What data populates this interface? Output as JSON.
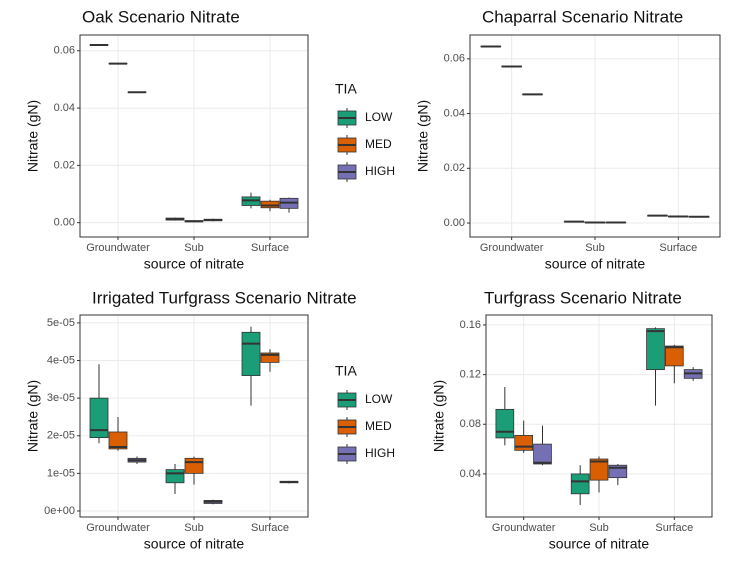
{
  "chart_data": [
    {
      "type": "box",
      "title": "Oak Scenario Nitrate",
      "x_label": "source of nitrate",
      "y_label": "Nitrate (gN)",
      "categories": [
        "Groundwater",
        "Sub",
        "Surface"
      ],
      "legend_title": "TIA",
      "legend": "right",
      "ylim": [
        -0.005,
        0.0655
      ],
      "yticks": [
        {
          "value": 0,
          "label": "0.00"
        },
        0.02,
        0.04,
        0.06
      ],
      "grid": true,
      "series": [
        {
          "name": "LOW",
          "color": "#1b9e77",
          "values": [
            {
              "min": 0.0618,
              "q1": 0.0619,
              "median": 0.062,
              "q3": 0.0621,
              "max": 0.0622
            },
            {
              "min": 0.0007,
              "q1": 0.0009,
              "median": 0.0012,
              "q3": 0.0016,
              "max": 0.0018
            },
            {
              "min": 0.005,
              "q1": 0.006,
              "median": 0.0078,
              "q3": 0.009,
              "max": 0.0105
            }
          ]
        },
        {
          "name": "MED",
          "color": "#d95f02",
          "values": [
            {
              "min": 0.0553,
              "q1": 0.0554,
              "median": 0.0555,
              "q3": 0.0556,
              "max": 0.0557
            },
            {
              "min": 0.0002,
              "q1": 0.0003,
              "median": 0.0005,
              "q3": 0.0007,
              "max": 0.0008
            },
            {
              "min": 0.004,
              "q1": 0.0052,
              "median": 0.006,
              "q3": 0.0075,
              "max": 0.008
            }
          ]
        },
        {
          "name": "HIGH",
          "color": "#7570b3",
          "values": [
            {
              "min": 0.0453,
              "q1": 0.0454,
              "median": 0.0455,
              "q3": 0.0456,
              "max": 0.0457
            },
            {
              "min": 0.0005,
              "q1": 0.0007,
              "median": 0.0009,
              "q3": 0.0012,
              "max": 0.0014
            },
            {
              "min": 0.0035,
              "q1": 0.005,
              "median": 0.007,
              "q3": 0.0085,
              "max": 0.0088
            }
          ]
        }
      ]
    },
    {
      "type": "box",
      "title": "Chaparral Scenario Nitrate",
      "x_label": "source of nitrate",
      "y_label": "Nitrate (gN)",
      "categories": [
        "Groundwater",
        "Sub",
        "Surface"
      ],
      "ylim": [
        -0.0051,
        0.0687
      ],
      "yticks": [
        {
          "value": 0,
          "label": "0.00"
        },
        0.02,
        0.04,
        0.06
      ],
      "grid": true,
      "series": [
        {
          "color": "#1b9e77",
          "values": [
            {
              "min": 0.0643,
              "q1": 0.0644,
              "median": 0.0645,
              "q3": 0.0646,
              "max": 0.0647
            },
            {
              "min": 0.0004,
              "q1": 0.00045,
              "median": 0.0005,
              "q3": 0.00055,
              "max": 0.0006
            },
            {
              "min": 0.0026,
              "q1": 0.00265,
              "median": 0.0027,
              "q3": 0.00275,
              "max": 0.0028
            }
          ]
        },
        {
          "color": "#d95f02",
          "values": [
            {
              "min": 0.057,
              "q1": 0.0571,
              "median": 0.0572,
              "q3": 0.0573,
              "max": 0.0574
            },
            {
              "min": 0.0001,
              "q1": 0.00015,
              "median": 0.0002,
              "q3": 0.00025,
              "max": 0.0003
            },
            {
              "min": 0.0023,
              "q1": 0.00235,
              "median": 0.0024,
              "q3": 0.00245,
              "max": 0.0025
            }
          ]
        },
        {
          "color": "#7570b3",
          "values": [
            {
              "min": 0.0468,
              "q1": 0.0469,
              "median": 0.047,
              "q3": 0.0471,
              "max": 0.0472
            },
            {
              "min": 0.0001,
              "q1": 0.00015,
              "median": 0.0002,
              "q3": 0.00025,
              "max": 0.0003
            },
            {
              "min": 0.0022,
              "q1": 0.00225,
              "median": 0.0023,
              "q3": 0.00235,
              "max": 0.0024
            }
          ]
        }
      ]
    },
    {
      "type": "box",
      "title": "Irrigated Turfgrass Scenario Nitrate",
      "x_label": "source of nitrate",
      "y_label": "Nitrate (gN)",
      "categories": [
        "Groundwater",
        "Sub",
        "Surface"
      ],
      "legend_title": "TIA",
      "legend": "right",
      "ylim": [
        -1.6e-06,
        5.21e-05
      ],
      "yticks": [
        {
          "value": 0,
          "label": "0e+00"
        },
        {
          "value": 1e-05,
          "label": "1e-05"
        },
        {
          "value": 2e-05,
          "label": "2e-05"
        },
        {
          "value": 3e-05,
          "label": "3e-05"
        },
        {
          "value": 4e-05,
          "label": "4e-05"
        },
        {
          "value": 5e-05,
          "label": "5e-05"
        }
      ],
      "grid": true,
      "series": [
        {
          "name": "LOW",
          "color": "#1b9e77",
          "values": [
            {
              "min": 1.8e-05,
              "q1": 1.95e-05,
              "median": 2.15e-05,
              "q3": 3e-05,
              "max": 3.9e-05
            },
            {
              "min": 4.5e-06,
              "q1": 7.5e-06,
              "median": 1e-05,
              "q3": 1.1e-05,
              "max": 1.25e-05
            },
            {
              "min": 2.8e-05,
              "q1": 3.6e-05,
              "median": 4.45e-05,
              "q3": 4.75e-05,
              "max": 4.9e-05
            }
          ]
        },
        {
          "name": "MED",
          "color": "#d95f02",
          "values": [
            {
              "min": 1.6e-05,
              "q1": 1.65e-05,
              "median": 1.7e-05,
              "q3": 2.1e-05,
              "max": 2.5e-05
            },
            {
              "min": 7e-06,
              "q1": 1e-05,
              "median": 1.3e-05,
              "q3": 1.4e-05,
              "max": 1.45e-05
            },
            {
              "min": 3.7e-05,
              "q1": 3.95e-05,
              "median": 4.15e-05,
              "q3": 4.2e-05,
              "max": 4.3e-05
            }
          ]
        },
        {
          "name": "HIGH",
          "color": "#7570b3",
          "values": [
            {
              "min": 1.25e-05,
              "q1": 1.3e-05,
              "median": 1.35e-05,
              "q3": 1.4e-05,
              "max": 1.45e-05
            },
            {
              "min": 1.8e-06,
              "q1": 2e-06,
              "median": 2.5e-06,
              "q3": 2.8e-06,
              "max": 3e-06
            },
            {
              "min": 7.3e-06,
              "q1": 7.5e-06,
              "median": 7.7e-06,
              "q3": 7.9e-06,
              "max": 8e-06
            }
          ]
        }
      ]
    },
    {
      "type": "box",
      "title": "Turfgrass Scenario Nitrate",
      "x_label": "source of nitrate",
      "y_label": "Nitrate (gN)",
      "categories": [
        "Groundwater",
        "Sub",
        "Surface"
      ],
      "ylim": [
        0.0053,
        0.168
      ],
      "yticks": [
        0.04,
        0.08,
        0.12,
        0.16
      ],
      "grid": true,
      "series": [
        {
          "color": "#1b9e77",
          "values": [
            {
              "min": 0.063,
              "q1": 0.069,
              "median": 0.074,
              "q3": 0.092,
              "max": 0.11
            },
            {
              "min": 0.015,
              "q1": 0.024,
              "median": 0.034,
              "q3": 0.04,
              "max": 0.047
            },
            {
              "min": 0.095,
              "q1": 0.124,
              "median": 0.155,
              "q3": 0.157,
              "max": 0.158
            }
          ]
        },
        {
          "color": "#d95f02",
          "values": [
            {
              "min": 0.057,
              "q1": 0.059,
              "median": 0.062,
              "q3": 0.071,
              "max": 0.083
            },
            {
              "min": 0.025,
              "q1": 0.035,
              "median": 0.05,
              "q3": 0.052,
              "max": 0.054
            },
            {
              "min": 0.113,
              "q1": 0.127,
              "median": 0.142,
              "q3": 0.143,
              "max": 0.144
            }
          ]
        },
        {
          "color": "#7570b3",
          "values": [
            {
              "min": 0.047,
              "q1": 0.048,
              "median": 0.049,
              "q3": 0.064,
              "max": 0.079
            },
            {
              "min": 0.031,
              "q1": 0.037,
              "median": 0.045,
              "q3": 0.047,
              "max": 0.048
            },
            {
              "min": 0.115,
              "q1": 0.117,
              "median": 0.121,
              "q3": 0.124,
              "max": 0.126
            }
          ]
        }
      ]
    }
  ]
}
